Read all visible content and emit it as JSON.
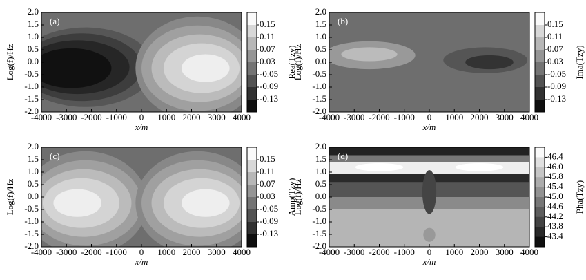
{
  "chart_data": [
    {
      "type": "contour",
      "label": "(a)",
      "xlabel": "x/m",
      "ylabel": "Log(f)/Hz",
      "xlim": [
        -4000,
        4000
      ],
      "xticks": [
        -4000,
        -3000,
        -2000,
        -1000,
        0,
        1000,
        2000,
        3000,
        4000
      ],
      "ylim": [
        -2,
        2
      ],
      "yticks": [
        {
          "value": 2,
          "label": "2.0"
        },
        1.5,
        {
          "value": 1,
          "label": "1.0"
        },
        0.5,
        {
          "value": 0,
          "label": "0.0"
        },
        -0.5,
        {
          "value": -1,
          "label": "-1.0"
        },
        -1.5,
        {
          "value": -2,
          "label": "-2.0"
        }
      ],
      "colorbar_label": "Rea(Tzy)",
      "colorbar_ticks": [
        0.15,
        0.11,
        0.07,
        0.03,
        -0.05,
        -0.09,
        -0.13
      ]
    },
    {
      "type": "contour",
      "label": "(b)",
      "xlabel": "x/m",
      "ylabel": "Log(f)/Hz",
      "xlim": [
        -4000,
        4000
      ],
      "xticks": [
        -4000,
        -3000,
        -2000,
        -1000,
        0,
        1000,
        2000,
        3000,
        4000
      ],
      "ylim": [
        -2,
        2
      ],
      "yticks": [
        {
          "value": 2,
          "label": "2.0"
        },
        1.5,
        {
          "value": 1,
          "label": "1.0"
        },
        0.5,
        {
          "value": 0,
          "label": "0.0"
        },
        -0.5,
        {
          "value": -1,
          "label": "-1.0"
        },
        -1.5,
        {
          "value": -2,
          "label": "-2.0"
        }
      ],
      "colorbar_label": "Ima(Tzy)",
      "colorbar_ticks": [
        0.15,
        0.11,
        0.07,
        0.03,
        -0.05,
        -0.09,
        -0.13
      ]
    },
    {
      "type": "contour",
      "label": "(c)",
      "xlabel": "x/m",
      "ylabel": "Log(f)/Hz",
      "xlim": [
        -4000,
        4000
      ],
      "xticks": [
        -4000,
        -3000,
        -2000,
        -1000,
        0,
        1000,
        2000,
        3000,
        4000
      ],
      "ylim": [
        -2,
        2
      ],
      "yticks": [
        {
          "value": 2,
          "label": "2.0"
        },
        1.5,
        {
          "value": 1,
          "label": "1.0"
        },
        0.5,
        {
          "value": 0,
          "label": "0.0"
        },
        -0.5,
        {
          "value": -1,
          "label": "-1.0"
        },
        -1.5,
        {
          "value": -2,
          "label": "-2.0"
        }
      ],
      "colorbar_label": "Amp(Tzy)",
      "colorbar_ticks": [
        0.15,
        0.11,
        0.07,
        0.03,
        -0.05,
        -0.09,
        -0.13
      ]
    },
    {
      "type": "contour",
      "label": "(d)",
      "xlabel": "x/m",
      "ylabel": "Log(f)/Hz",
      "xlim": [
        -4000,
        4000
      ],
      "xticks": [
        -4000,
        -3000,
        -2000,
        -1000,
        0,
        1000,
        2000,
        3000,
        4000
      ],
      "ylim": [
        -2,
        2
      ],
      "yticks": [
        {
          "value": 2,
          "label": "2.0"
        },
        1.5,
        {
          "value": 1,
          "label": "1.0"
        },
        0.5,
        {
          "value": 0,
          "label": "0.0"
        },
        -0.5,
        {
          "value": -1,
          "label": "-1.0"
        },
        -1.5,
        {
          "value": -2,
          "label": "-2.0"
        }
      ],
      "colorbar_label": "Pha(Tzy)",
      "colorbar_ticks": [
        46.4,
        {
          "value": 46,
          "label": "46.0"
        },
        45.8,
        45.4,
        {
          "value": 45,
          "label": "45.0"
        },
        44.6,
        44.2,
        43.8,
        43.4
      ]
    }
  ]
}
